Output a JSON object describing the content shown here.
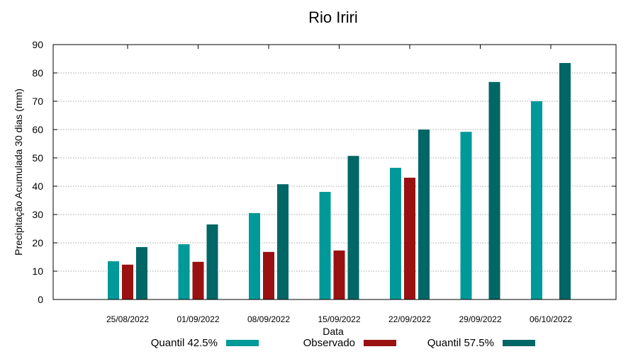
{
  "chart_data": {
    "type": "bar",
    "title": "Rio Iriri",
    "xlabel": "Data",
    "ylabel": "Precipitação Acumulada 30 dias (mm)",
    "ylim": [
      0,
      90
    ],
    "yticks": [
      0,
      10,
      20,
      30,
      40,
      50,
      60,
      70,
      80,
      90
    ],
    "grid": true,
    "legend_position": "bottom",
    "categories": [
      "25/08/2022",
      "01/09/2022",
      "08/09/2022",
      "15/09/2022",
      "22/09/2022",
      "29/09/2022",
      "06/10/2022"
    ],
    "series": [
      {
        "name": "Quantil 42.5%",
        "color": "#009999",
        "values": [
          13.5,
          19.5,
          30.5,
          38,
          46.5,
          59.2,
          70
        ]
      },
      {
        "name": "Observado",
        "color": "#991111",
        "values": [
          12.3,
          13.3,
          16.8,
          17.3,
          43,
          null,
          null
        ]
      },
      {
        "name": "Quantil 57.5%",
        "color": "#006666",
        "values": [
          18.5,
          26.5,
          40.7,
          50.7,
          60,
          76.8,
          83.5
        ]
      }
    ]
  }
}
